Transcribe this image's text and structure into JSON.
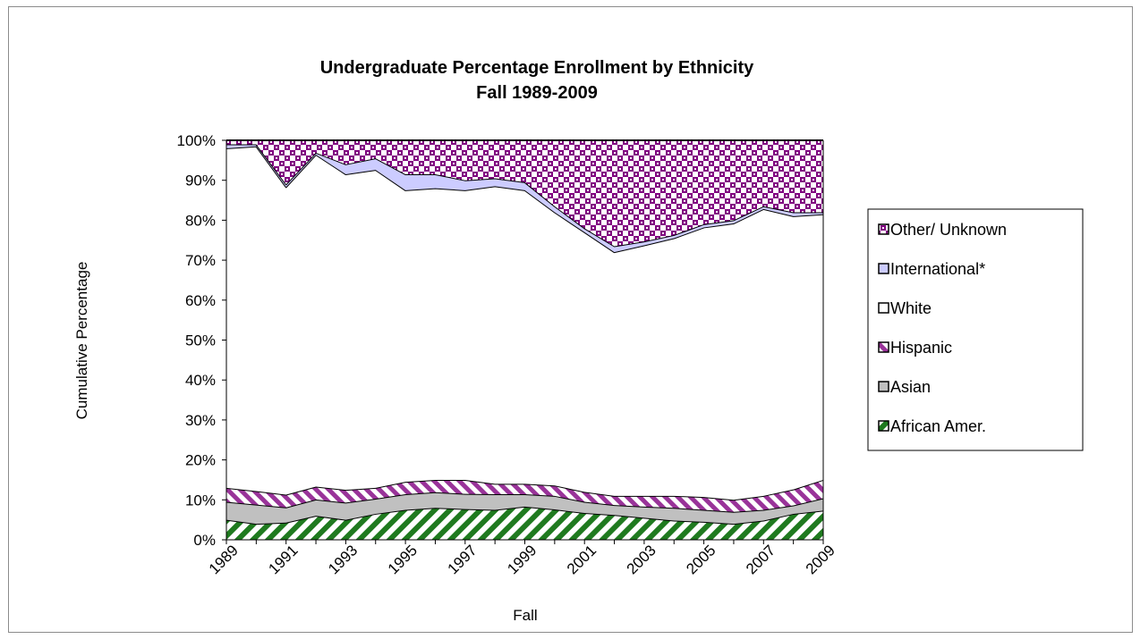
{
  "chart_data": {
    "type": "area",
    "stacked": "percent",
    "title": "Undergraduate Percentage Enrollment by Ethnicity",
    "subtitle": "Fall 1989-2009",
    "xlabel": "Fall",
    "ylabel": "Cumulative Percentage",
    "ylim": [
      0,
      100
    ],
    "y_tick_labels": [
      "0%",
      "10%",
      "20%",
      "30%",
      "40%",
      "50%",
      "60%",
      "70%",
      "80%",
      "90%",
      "100%"
    ],
    "x": [
      1989,
      1990,
      1991,
      1992,
      1993,
      1994,
      1995,
      1996,
      1997,
      1998,
      1999,
      2000,
      2001,
      2002,
      2003,
      2004,
      2005,
      2006,
      2007,
      2008,
      2009
    ],
    "x_tick_labels": [
      "1989",
      "1991",
      "1993",
      "1995",
      "1997",
      "1999",
      "2001",
      "2003",
      "2005",
      "2007",
      "2009"
    ],
    "legend_position": "right",
    "series": [
      {
        "name": "African Amer.",
        "color": "#1f7a1f",
        "pattern": "diagonal-stripes",
        "values": [
          5.0,
          4.0,
          4.3,
          6.0,
          5.0,
          6.5,
          7.5,
          8.0,
          7.7,
          7.5,
          8.3,
          7.6,
          6.7,
          6.2,
          5.5,
          4.8,
          4.5,
          4.0,
          4.8,
          6.5,
          7.3
        ]
      },
      {
        "name": "Asian",
        "color": "#c0c0c0",
        "pattern": "solid",
        "values": [
          4.5,
          4.8,
          3.8,
          4.1,
          4.3,
          3.8,
          3.9,
          3.9,
          3.8,
          3.9,
          3.1,
          3.4,
          2.8,
          2.5,
          2.8,
          3.2,
          3.0,
          3.0,
          2.7,
          2.1,
          3.1
        ]
      },
      {
        "name": "Hispanic",
        "color": "#993399",
        "pattern": "diagonal-stripes",
        "values": [
          3.5,
          3.4,
          3.2,
          3.2,
          3.2,
          2.7,
          3.1,
          3.1,
          3.5,
          2.6,
          2.6,
          2.6,
          2.5,
          2.3,
          2.7,
          3.0,
          3.2,
          3.0,
          3.5,
          4.0,
          4.6
        ]
      },
      {
        "name": "White",
        "color": "#ffffff",
        "pattern": "solid",
        "values": [
          85.0,
          86.3,
          77.0,
          83.1,
          79.0,
          79.6,
          73.0,
          73.0,
          72.5,
          74.5,
          73.5,
          68.4,
          65.0,
          61.0,
          62.7,
          64.5,
          67.5,
          69.2,
          71.8,
          68.4,
          66.5
        ]
      },
      {
        "name": "International*",
        "color": "#ccccff",
        "pattern": "solid",
        "values": [
          1.0,
          0.5,
          0.7,
          0.5,
          2.5,
          2.9,
          4.0,
          3.5,
          2.5,
          2.0,
          2.0,
          1.5,
          1.0,
          1.5,
          1.0,
          0.8,
          0.8,
          0.8,
          0.7,
          1.0,
          0.5
        ]
      },
      {
        "name": "Other/ Unknown",
        "color": "#800080",
        "pattern": "checker",
        "values": [
          1.0,
          1.0,
          11.0,
          3.1,
          6.0,
          4.5,
          8.5,
          8.5,
          10.0,
          9.5,
          10.5,
          16.5,
          22.0,
          26.5,
          25.3,
          23.7,
          21.0,
          20.0,
          16.5,
          18.0,
          18.0
        ]
      }
    ],
    "legend_order": [
      "Other/ Unknown",
      "International*",
      "White",
      "Hispanic",
      "Asian",
      "African Amer."
    ]
  }
}
